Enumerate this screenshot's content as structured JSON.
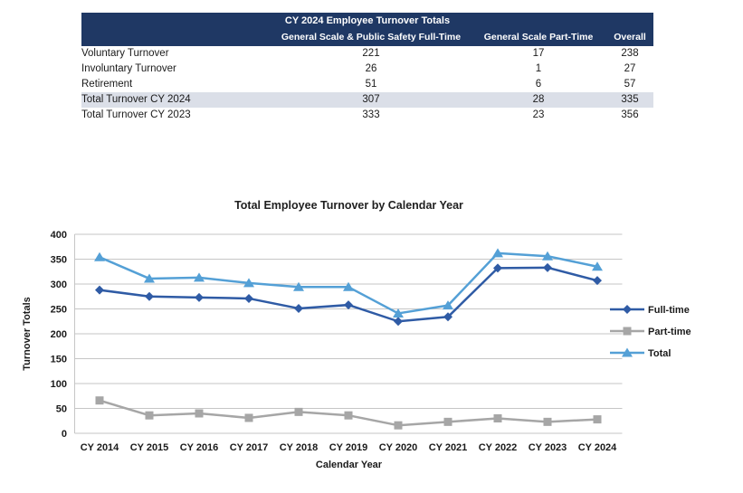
{
  "table": {
    "title": "CY 2024 Employee Turnover Totals",
    "columns": [
      "General Scale & Public Safety Full-Time",
      "General Scale Part-Time",
      "Overall"
    ],
    "rows": [
      {
        "label": "Voluntary Turnover",
        "fulltime": "221",
        "parttime": "17",
        "overall": "238",
        "highlight": false
      },
      {
        "label": "Involuntary Turnover",
        "fulltime": "26",
        "parttime": "1",
        "overall": "27",
        "highlight": false
      },
      {
        "label": "Retirement",
        "fulltime": "51",
        "parttime": "6",
        "overall": "57",
        "highlight": false
      },
      {
        "label": "Total Turnover CY 2024",
        "fulltime": "307",
        "parttime": "28",
        "overall": "335",
        "highlight": true
      },
      {
        "label": "Total Turnover CY 2023",
        "fulltime": "333",
        "parttime": "23",
        "overall": "356",
        "highlight": false
      }
    ]
  },
  "chart_data": {
    "type": "line",
    "title": "Total Employee Turnover by Calendar Year",
    "xlabel": "Calendar Year",
    "ylabel": "Turnover Totals",
    "categories": [
      "CY 2014",
      "CY 2015",
      "CY 2016",
      "CY 2017",
      "CY 2018",
      "CY 2019",
      "CY 2020",
      "CY 2021",
      "CY 2022",
      "CY 2023",
      "CY 2024"
    ],
    "series": [
      {
        "name": "Full-time",
        "marker": "diamond",
        "color": "#2F5BA5",
        "values": [
          288,
          275,
          273,
          271,
          251,
          258,
          225,
          234,
          332,
          333,
          307
        ]
      },
      {
        "name": "Part-time",
        "marker": "square",
        "color": "#A6A6A6",
        "values": [
          66,
          36,
          40,
          31,
          43,
          36,
          16,
          23,
          30,
          23,
          28
        ]
      },
      {
        "name": "Total",
        "marker": "triangle",
        "color": "#54A0D6",
        "values": [
          354,
          311,
          313,
          302,
          294,
          294,
          241,
          257,
          362,
          356,
          335
        ]
      }
    ],
    "ylim": [
      0,
      400
    ],
    "ytick_step": 50,
    "grid": true,
    "gridline_color": "#C6C6C6",
    "legend_position": "right",
    "text_color": "#1a1a1a"
  }
}
